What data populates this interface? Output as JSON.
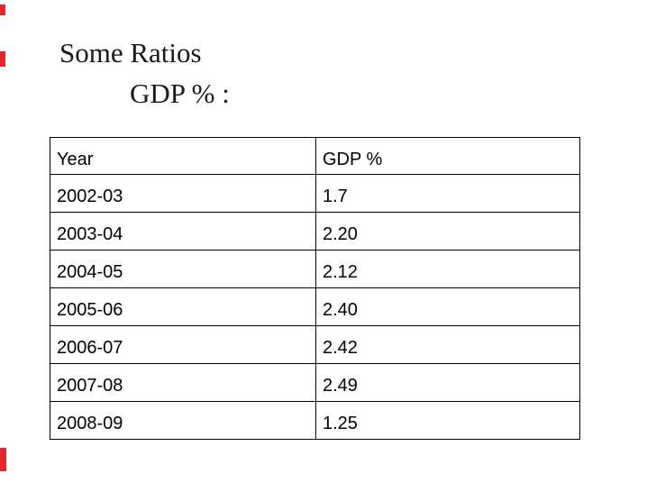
{
  "slide": {
    "title_line1": "Some Ratios",
    "title_line2": "GDP % :",
    "background_color": "#ffffff",
    "title_color": "#1a1a1a",
    "accent_color": "#e5262d"
  },
  "table": {
    "columns": [
      "Year",
      "GDP %"
    ],
    "rows": [
      [
        "2002-03",
        "1.7"
      ],
      [
        "2003-04",
        "2.20"
      ],
      [
        "2004-05",
        "2.12"
      ],
      [
        "2005-06",
        "2.40"
      ],
      [
        "2006-07",
        "2.42"
      ],
      [
        "2007-08",
        "2.49"
      ],
      [
        "2008-09",
        "1.25"
      ]
    ]
  },
  "chart_data": {
    "type": "table",
    "title": "Some Ratios — GDP %",
    "categories": [
      "2002-03",
      "2003-04",
      "2004-05",
      "2005-06",
      "2006-07",
      "2007-08",
      "2008-09"
    ],
    "values": [
      1.7,
      2.2,
      2.12,
      2.4,
      2.42,
      2.49,
      1.25
    ],
    "xlabel": "Year",
    "ylabel": "GDP %"
  }
}
